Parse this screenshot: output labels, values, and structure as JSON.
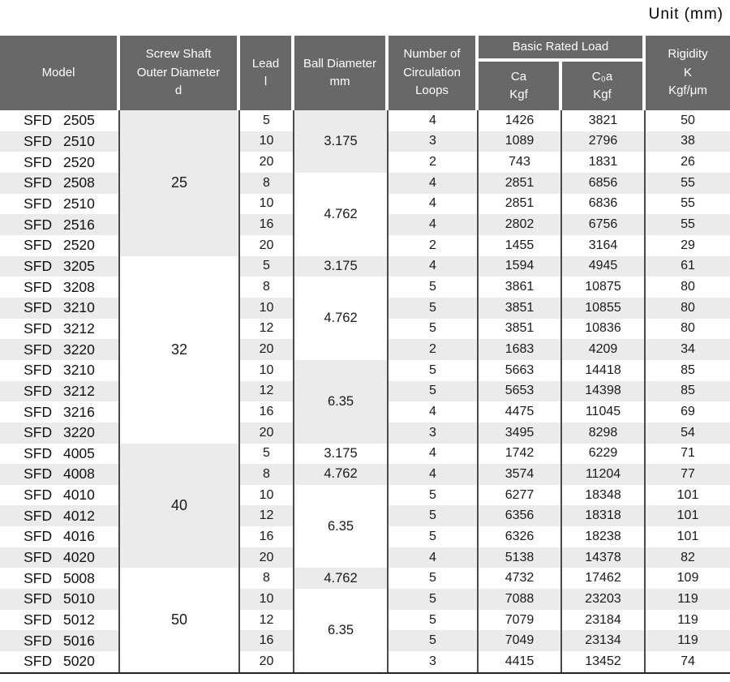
{
  "unit_label": "Unit  (mm)",
  "header": {
    "model": "Model",
    "screw_shaft": [
      "Screw Shaft",
      "Outer Diameter",
      "d"
    ],
    "lead": [
      "Lead",
      "l"
    ],
    "ball_diameter": [
      "Ball Diameter",
      "mm"
    ],
    "loops": [
      "Number of",
      "Circulation",
      "Loops"
    ],
    "basic_rated_load": "Basic Rated Load",
    "ca": [
      "Ca",
      "Kgf"
    ],
    "c0a": [
      "C₀a",
      "Kgf"
    ],
    "rigidity": [
      "Rigidity",
      "K",
      "Kgf/μm"
    ]
  },
  "colors": {
    "header_bg": "#686868",
    "header_text": "#ffffff",
    "row_stripe": "#ebebeb",
    "grid_line": "#4a4a4a",
    "body_text": "#1a1a1a"
  },
  "diameter_groups": [
    {
      "value": "25",
      "span": 7,
      "shaded": true
    },
    {
      "value": "32",
      "span": 9,
      "shaded": false
    },
    {
      "value": "40",
      "span": 6,
      "shaded": true
    },
    {
      "value": "50",
      "span": 5,
      "shaded": false
    }
  ],
  "ball_groups": [
    {
      "value": "3.175",
      "span": 3,
      "shaded": true
    },
    {
      "value": "4.762",
      "span": 4,
      "shaded": false
    },
    {
      "value": "3.175",
      "span": 1,
      "shaded": true
    },
    {
      "value": "4.762",
      "span": 4,
      "shaded": false
    },
    {
      "value": "6.35",
      "span": 4,
      "shaded": true
    },
    {
      "value": "3.175",
      "span": 1,
      "shaded": false
    },
    {
      "value": "4.762",
      "span": 1,
      "shaded": true
    },
    {
      "value": "6.35",
      "span": 4,
      "shaded": false
    },
    {
      "value": "4.762",
      "span": 1,
      "shaded": true
    },
    {
      "value": "6.35",
      "span": 4,
      "shaded": false
    }
  ],
  "rows": [
    {
      "model": "SFD 2505",
      "lead": "5",
      "loops": "4",
      "ca": "1426",
      "c0a": "3821",
      "rigidity": "50"
    },
    {
      "model": "SFD 2510",
      "lead": "10",
      "loops": "3",
      "ca": "1089",
      "c0a": "2796",
      "rigidity": "38"
    },
    {
      "model": "SFD 2520",
      "lead": "20",
      "loops": "2",
      "ca": "743",
      "c0a": "1831",
      "rigidity": "26"
    },
    {
      "model": "SFD 2508",
      "lead": "8",
      "loops": "4",
      "ca": "2851",
      "c0a": "6856",
      "rigidity": "55"
    },
    {
      "model": "SFD 2510",
      "lead": "10",
      "loops": "4",
      "ca": "2851",
      "c0a": "6836",
      "rigidity": "55"
    },
    {
      "model": "SFD 2516",
      "lead": "16",
      "loops": "4",
      "ca": "2802",
      "c0a": "6756",
      "rigidity": "55"
    },
    {
      "model": "SFD 2520",
      "lead": "20",
      "loops": "2",
      "ca": "1455",
      "c0a": "3164",
      "rigidity": "29"
    },
    {
      "model": "SFD 3205",
      "lead": "5",
      "loops": "4",
      "ca": "1594",
      "c0a": "4945",
      "rigidity": "61"
    },
    {
      "model": "SFD 3208",
      "lead": "8",
      "loops": "5",
      "ca": "3861",
      "c0a": "10875",
      "rigidity": "80"
    },
    {
      "model": "SFD 3210",
      "lead": "10",
      "loops": "5",
      "ca": "3851",
      "c0a": "10855",
      "rigidity": "80"
    },
    {
      "model": "SFD 3212",
      "lead": "12",
      "loops": "5",
      "ca": "3851",
      "c0a": "10836",
      "rigidity": "80"
    },
    {
      "model": "SFD 3220",
      "lead": "20",
      "loops": "2",
      "ca": "1683",
      "c0a": "4209",
      "rigidity": "34"
    },
    {
      "model": "SFD 3210",
      "lead": "10",
      "loops": "5",
      "ca": "5663",
      "c0a": "14418",
      "rigidity": "85"
    },
    {
      "model": "SFD 3212",
      "lead": "12",
      "loops": "5",
      "ca": "5653",
      "c0a": "14398",
      "rigidity": "85"
    },
    {
      "model": "SFD 3216",
      "lead": "16",
      "loops": "4",
      "ca": "4475",
      "c0a": "11045",
      "rigidity": "69"
    },
    {
      "model": "SFD 3220",
      "lead": "20",
      "loops": "3",
      "ca": "3495",
      "c0a": "8298",
      "rigidity": "54"
    },
    {
      "model": "SFD 4005",
      "lead": "5",
      "loops": "4",
      "ca": "1742",
      "c0a": "6229",
      "rigidity": "71"
    },
    {
      "model": "SFD 4008",
      "lead": "8",
      "loops": "4",
      "ca": "3574",
      "c0a": "11204",
      "rigidity": "77"
    },
    {
      "model": "SFD 4010",
      "lead": "10",
      "loops": "5",
      "ca": "6277",
      "c0a": "18348",
      "rigidity": "101"
    },
    {
      "model": "SFD 4012",
      "lead": "12",
      "loops": "5",
      "ca": "6356",
      "c0a": "18318",
      "rigidity": "101"
    },
    {
      "model": "SFD 4016",
      "lead": "16",
      "loops": "5",
      "ca": "6326",
      "c0a": "18238",
      "rigidity": "101"
    },
    {
      "model": "SFD 4020",
      "lead": "20",
      "loops": "4",
      "ca": "5138",
      "c0a": "14378",
      "rigidity": "82"
    },
    {
      "model": "SFD 5008",
      "lead": "8",
      "loops": "5",
      "ca": "4732",
      "c0a": "17462",
      "rigidity": "109"
    },
    {
      "model": "SFD 5010",
      "lead": "10",
      "loops": "5",
      "ca": "7088",
      "c0a": "23203",
      "rigidity": "119"
    },
    {
      "model": "SFD 5012",
      "lead": "12",
      "loops": "5",
      "ca": "7079",
      "c0a": "23184",
      "rigidity": "119"
    },
    {
      "model": "SFD 5016",
      "lead": "16",
      "loops": "5",
      "ca": "7049",
      "c0a": "23134",
      "rigidity": "119"
    },
    {
      "model": "SFD 5020",
      "lead": "20",
      "loops": "3",
      "ca": "4415",
      "c0a": "13452",
      "rigidity": "74"
    }
  ]
}
